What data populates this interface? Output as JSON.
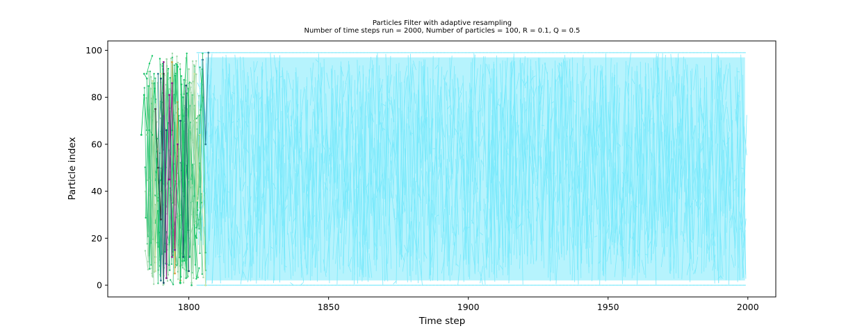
{
  "chart_data": {
    "type": "line",
    "title": "Particles Filter with adaptive resampling",
    "subtitle": "Number of time steps run = 2000, Number of particles = 100, R = 0.1, Q = 0.5",
    "xlabel": "Time step",
    "ylabel": "Particle index",
    "xlim": [
      1771,
      2010
    ],
    "ylim": [
      -5,
      104
    ],
    "xticks": [
      1800,
      1850,
      1900,
      1950,
      2000
    ],
    "yticks": [
      0,
      20,
      40,
      60,
      80,
      100
    ],
    "grid": false,
    "legend": "none",
    "colors": {
      "dominant": "#7ae9fb",
      "early": [
        "#14c765",
        "#35c47a",
        "#9ed8a8",
        "#c8e2a0",
        "#2d7f93",
        "#1d4f6e",
        "#8b1a86",
        "#3a3a3a",
        "#d4a03a"
      ]
    },
    "series": [
      {
        "x": [
          1783,
          1784,
          1785,
          1786,
          1787
        ],
        "values": [
          64,
          81,
          66,
          66,
          64
        ]
      },
      {
        "x": [
          1784,
          1785,
          1786,
          1787,
          1788
        ],
        "values": [
          90,
          88,
          7,
          86,
          12
        ]
      },
      {
        "x": [
          1785,
          1786,
          1787,
          1788
        ],
        "values": [
          64,
          84,
          4,
          77
        ]
      },
      {
        "x": [
          1787,
          1788,
          1789,
          1790,
          1791
        ],
        "values": [
          87,
          6,
          58,
          90,
          4
        ]
      },
      {
        "x": [
          1789,
          1790,
          1791,
          1792
        ],
        "values": [
          90,
          2,
          72,
          9
        ]
      },
      {
        "x": [
          1790,
          1791,
          1792
        ],
        "values": [
          88,
          1,
          66
        ]
      },
      {
        "x": [
          1791,
          1792,
          1793,
          1794
        ],
        "values": [
          95,
          3,
          81,
          12
        ]
      },
      {
        "x": [
          1788,
          1789,
          1790,
          1791
        ],
        "values": [
          75,
          50,
          28,
          90
        ]
      },
      {
        "x": [
          1794,
          1795,
          1796,
          1797
        ],
        "values": [
          95,
          5,
          78,
          2
        ]
      },
      {
        "x": [
          1796,
          1797,
          1798,
          1799
        ],
        "values": [
          93,
          1,
          72,
          12
        ]
      },
      {
        "x": [
          1798,
          1799,
          1800,
          1801
        ],
        "values": [
          80,
          3,
          66,
          0
        ]
      },
      {
        "x": [
          1800,
          1801,
          1802,
          1803
        ],
        "values": [
          92,
          1,
          70,
          38
        ]
      },
      {
        "x": [
          1802,
          1803,
          1804,
          1806
        ],
        "values": [
          90,
          36,
          64,
          0
        ]
      },
      {
        "x": [
          1805,
          1806,
          1807
        ],
        "values": [
          96,
          60,
          99
        ]
      },
      {
        "x": [
          1797,
          1798,
          1799,
          1800
        ],
        "values": [
          70,
          12,
          85,
          6
        ]
      },
      {
        "x": [
          1793,
          1794,
          1795,
          1796
        ],
        "values": [
          45,
          86,
          15,
          60
        ]
      }
    ],
    "dense_region": {
      "x_start": 1803,
      "x_end": 1999,
      "y_min": 0,
      "y_max": 99
    }
  }
}
